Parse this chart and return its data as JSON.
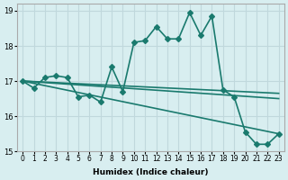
{
  "xlabel": "Humidex (Indice chaleur)",
  "ylabel": "",
  "bg_color": "#d8eef0",
  "grid_color": "#c0d8dc",
  "line_color": "#1a7a6e",
  "xlim": [
    -0.5,
    23.5
  ],
  "ylim": [
    15,
    19.2
  ],
  "yticks": [
    15,
    16,
    17,
    18,
    19
  ],
  "xtick_labels": [
    "0",
    "1",
    "2",
    "3",
    "4",
    "5",
    "6",
    "7",
    "8",
    "9",
    "10",
    "11",
    "12",
    "13",
    "14",
    "15",
    "16",
    "17",
    "18",
    "19",
    "20",
    "21",
    "22",
    "23"
  ],
  "series1_x": [
    0,
    1,
    2,
    3,
    4,
    5,
    6,
    7,
    8,
    9,
    10,
    11,
    12,
    13,
    14,
    15,
    16,
    17,
    18,
    19,
    20,
    21,
    22,
    23
  ],
  "series1_y": [
    17.0,
    16.8,
    17.1,
    17.15,
    17.1,
    16.55,
    16.6,
    16.4,
    17.4,
    16.7,
    18.1,
    18.15,
    18.55,
    18.2,
    18.2,
    18.95,
    18.3,
    18.85,
    16.75,
    16.55,
    15.55,
    15.2,
    15.2,
    15.5
  ],
  "series2_x": [
    0,
    23
  ],
  "series2_y": [
    17.0,
    16.5
  ],
  "series3_x": [
    0,
    23
  ],
  "series3_y": [
    17.0,
    15.5
  ],
  "series4_x": [
    0,
    23
  ],
  "series4_y": [
    17.0,
    16.65
  ],
  "marker": "D",
  "markersize": 3,
  "linewidth": 1.2
}
